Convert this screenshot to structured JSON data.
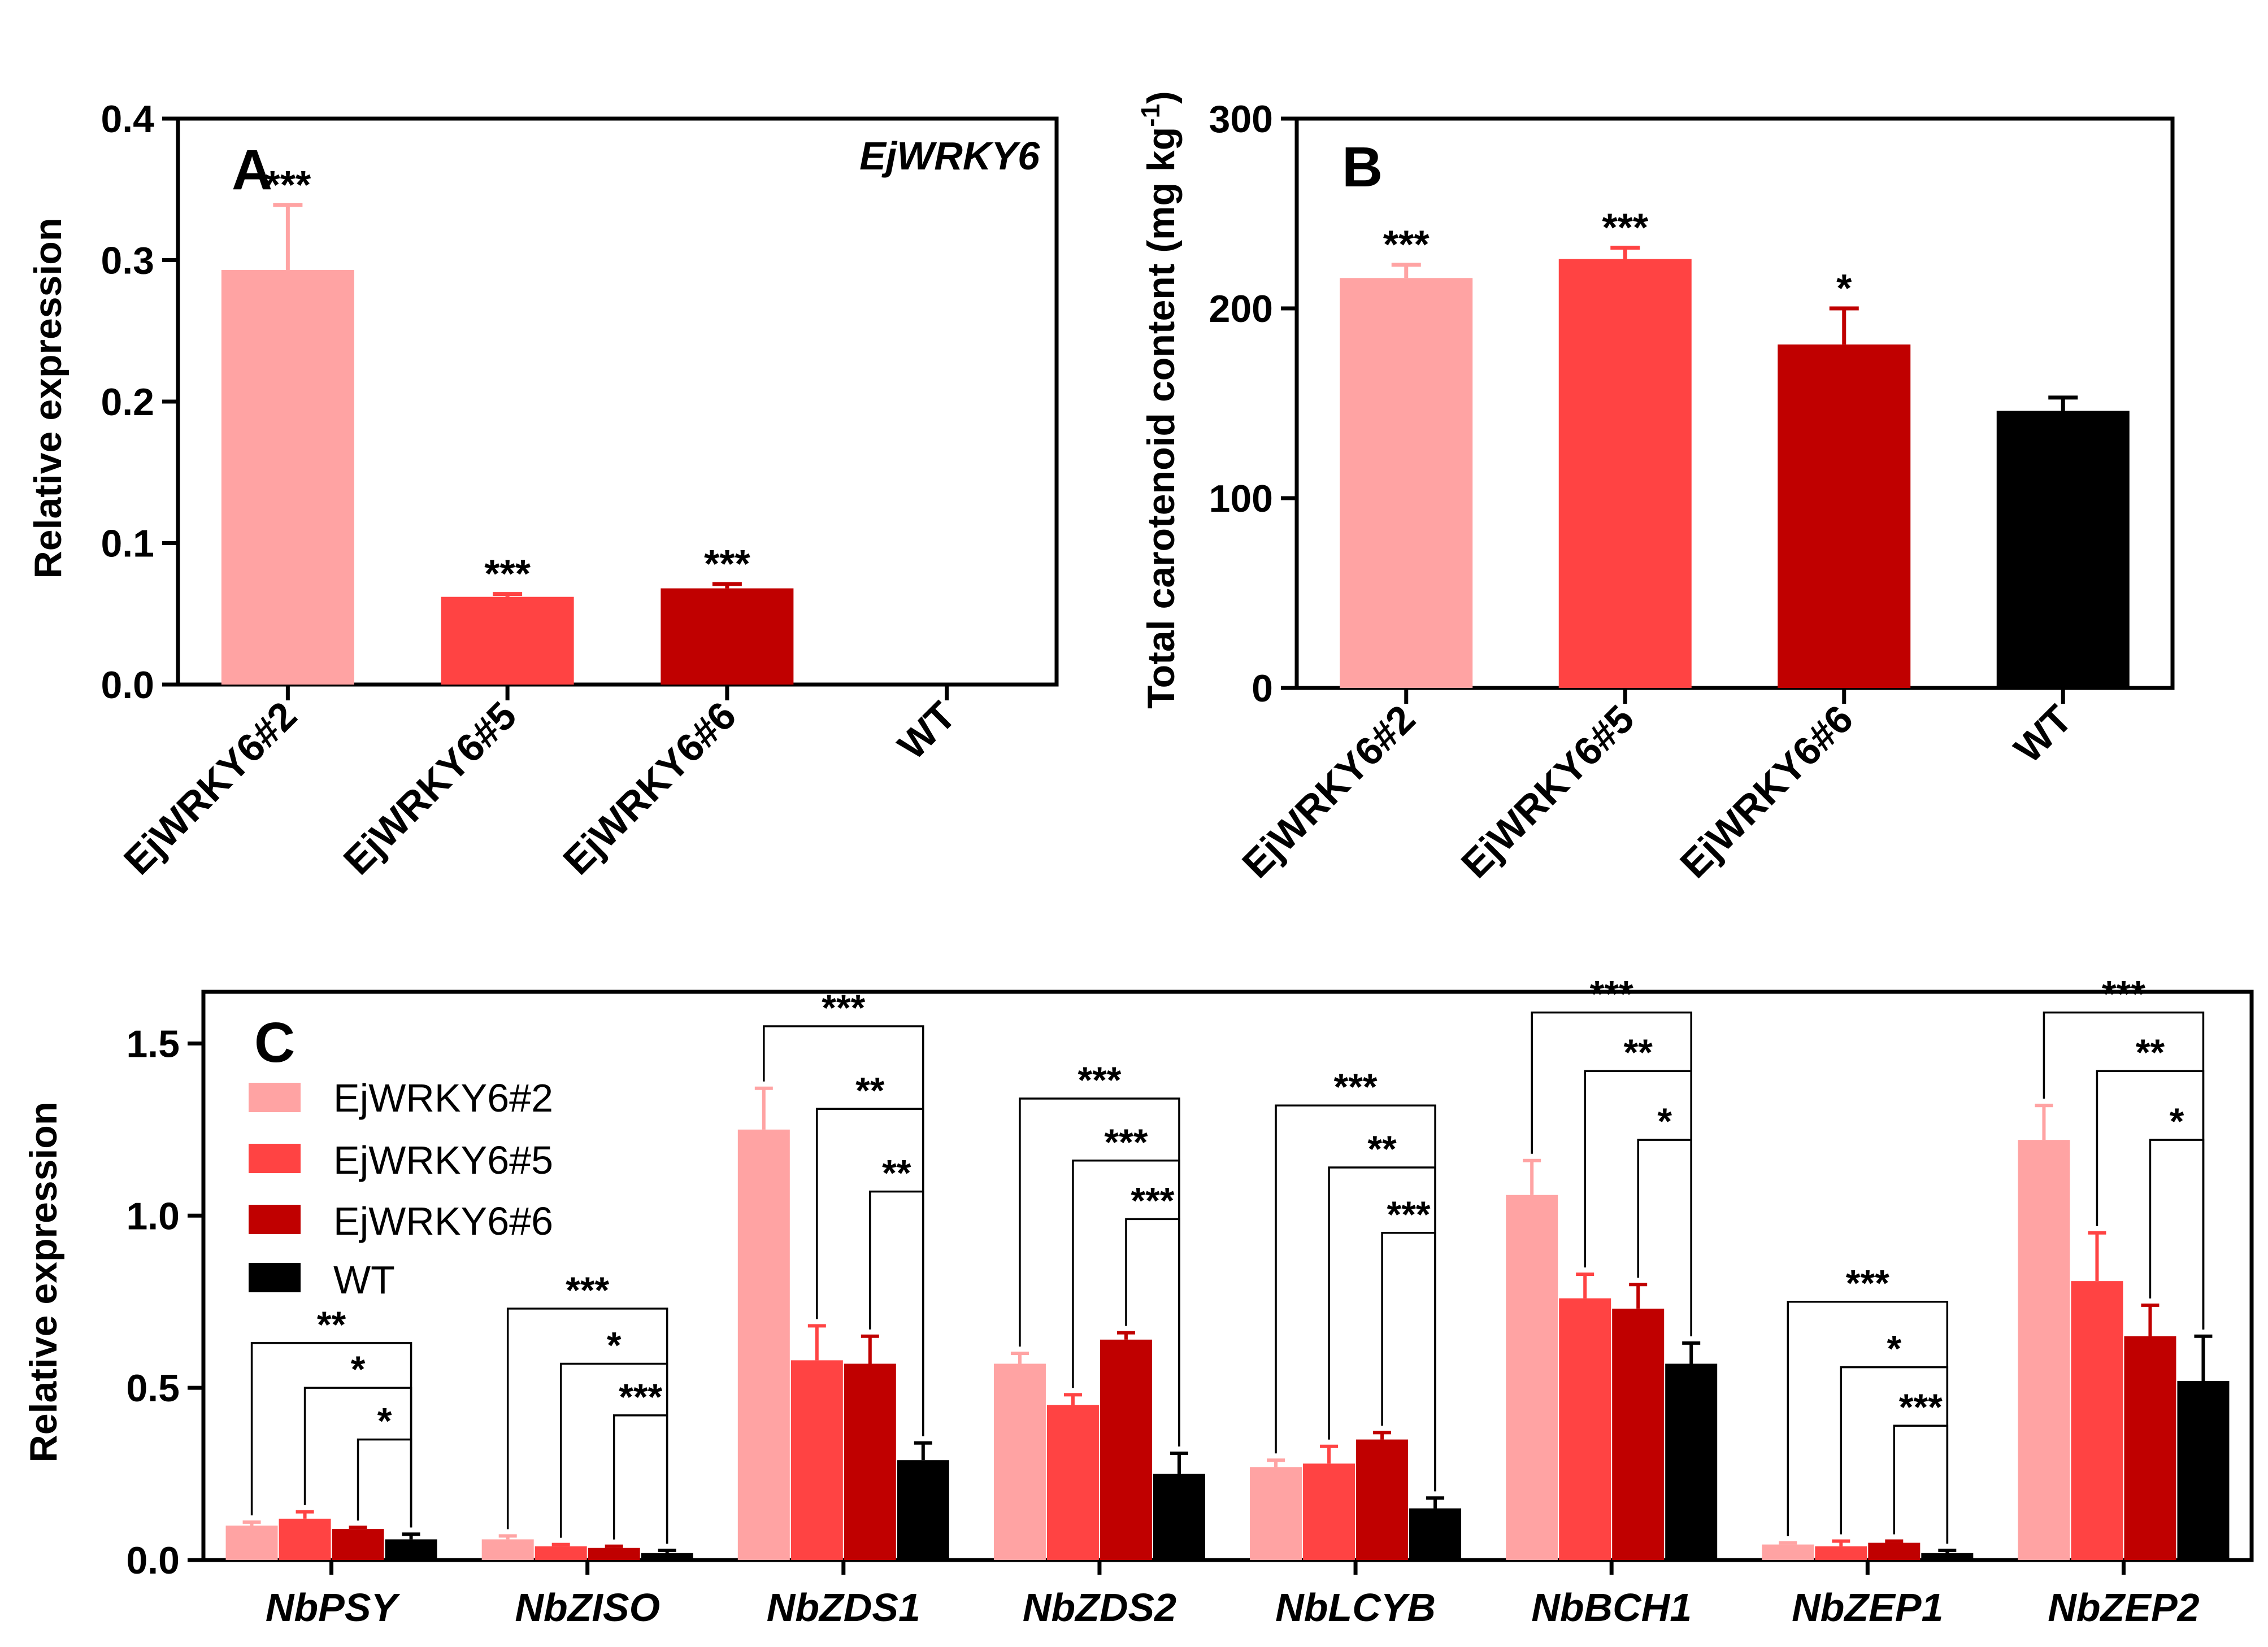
{
  "colors": {
    "EjWRKY6#2": "#FFA3A3",
    "EjWRKY6#5": "#FF4343",
    "EjWRKY6#6": "#C00000",
    "WT": "#000000",
    "axis": "#000000"
  },
  "chart_data": [
    {
      "type": "bar",
      "panel_label": "A",
      "title": "EjWRKY6",
      "xlabel": "",
      "ylabel": "Relative expression",
      "ylim": [
        0,
        0.4
      ],
      "yticks": [
        0.0,
        0.1,
        0.2,
        0.3,
        0.4
      ],
      "ytick_labels": [
        "0.0",
        "0.1",
        "0.2",
        "0.3",
        "0.4"
      ],
      "categories": [
        "EjWRKY6#2",
        "EjWRKY6#5",
        "EjWRKY6#6",
        "WT"
      ],
      "values": [
        0.293,
        0.062,
        0.068,
        0.001
      ],
      "errors": [
        0.046,
        0.002,
        0.003,
        0.0
      ],
      "significance": [
        "***",
        "***",
        "***",
        ""
      ],
      "grid": false
    },
    {
      "type": "bar",
      "panel_label": "B",
      "title": "",
      "xlabel": "",
      "ylabel": "Total carotenoid content (mg kg",
      "ylabel_superscript": "-1",
      "ylabel_suffix": ")",
      "ylim": [
        0,
        300
      ],
      "yticks": [
        0,
        100,
        200,
        300
      ],
      "ytick_labels": [
        "0",
        "100",
        "200",
        "300"
      ],
      "categories": [
        "EjWRKY6#2",
        "EjWRKY6#5",
        "EjWRKY6#6",
        "WT"
      ],
      "values": [
        216,
        226,
        181,
        146
      ],
      "errors": [
        7,
        6,
        19,
        7
      ],
      "significance": [
        "***",
        "***",
        "*",
        ""
      ],
      "grid": false
    },
    {
      "type": "bar",
      "panel_label": "C",
      "title": "",
      "xlabel": "",
      "ylabel": "Relative expression",
      "ylim": [
        0,
        1.65
      ],
      "yticks": [
        0.0,
        0.5,
        1.0,
        1.5
      ],
      "ytick_labels": [
        "0.0",
        "0.5",
        "1.0",
        "1.5"
      ],
      "legend_position": "top-left",
      "categories": [
        "NbPSY",
        "NbZISO",
        "NbZDS1",
        "NbZDS2",
        "NbLCYB",
        "NbBCH1",
        "NbZEP1",
        "NbZEP2"
      ],
      "series": [
        {
          "name": "EjWRKY6#2",
          "values": [
            0.1,
            0.06,
            1.25,
            0.57,
            0.27,
            1.06,
            0.045,
            1.22
          ],
          "errors": [
            0.01,
            0.01,
            0.12,
            0.03,
            0.02,
            0.1,
            0.005,
            0.1
          ]
        },
        {
          "name": "EjWRKY6#5",
          "values": [
            0.12,
            0.04,
            0.58,
            0.45,
            0.28,
            0.76,
            0.04,
            0.81
          ],
          "errors": [
            0.02,
            0.005,
            0.1,
            0.03,
            0.05,
            0.07,
            0.015,
            0.14
          ]
        },
        {
          "name": "EjWRKY6#6",
          "values": [
            0.09,
            0.035,
            0.57,
            0.64,
            0.35,
            0.73,
            0.05,
            0.65
          ],
          "errors": [
            0.005,
            0.005,
            0.08,
            0.02,
            0.02,
            0.07,
            0.005,
            0.09
          ]
        },
        {
          "name": "WT",
          "values": [
            0.06,
            0.02,
            0.29,
            0.25,
            0.15,
            0.57,
            0.02,
            0.52
          ],
          "errors": [
            0.015,
            0.008,
            0.05,
            0.06,
            0.03,
            0.06,
            0.008,
            0.13
          ]
        }
      ],
      "brackets": [
        [
          {
            "stars": "**",
            "y": 0.63
          },
          {
            "stars": "*",
            "y": 0.5
          },
          {
            "stars": "*",
            "y": 0.35
          }
        ],
        [
          {
            "stars": "***",
            "y": 0.73
          },
          {
            "stars": "*",
            "y": 0.57
          },
          {
            "stars": "***",
            "y": 0.42
          }
        ],
        [
          {
            "stars": "***",
            "y": 1.55
          },
          {
            "stars": "**",
            "y": 1.31
          },
          {
            "stars": "**",
            "y": 1.07
          }
        ],
        [
          {
            "stars": "***",
            "y": 1.34
          },
          {
            "stars": "***",
            "y": 1.16
          },
          {
            "stars": "***",
            "y": 0.99
          }
        ],
        [
          {
            "stars": "***",
            "y": 1.32
          },
          {
            "stars": "**",
            "y": 1.14
          },
          {
            "stars": "***",
            "y": 0.95
          }
        ],
        [
          {
            "stars": "***",
            "y": 1.59
          },
          {
            "stars": "**",
            "y": 1.42
          },
          {
            "stars": "*",
            "y": 1.22
          }
        ],
        [
          {
            "stars": "***",
            "y": 0.75
          },
          {
            "stars": "*",
            "y": 0.56
          },
          {
            "stars": "***",
            "y": 0.39
          }
        ],
        [
          {
            "stars": "***",
            "y": 1.59
          },
          {
            "stars": "**",
            "y": 1.42
          },
          {
            "stars": "*",
            "y": 1.22
          }
        ]
      ],
      "grid": false
    }
  ]
}
